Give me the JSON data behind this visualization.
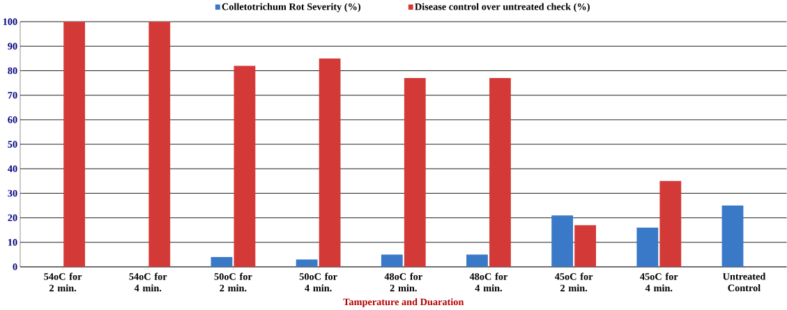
{
  "chart_data": {
    "type": "bar",
    "xlabel": "Tamperature  and Duaration",
    "categories": [
      "54oC for 2 min.",
      "54oC for 4 min.",
      "50oC for 2 min.",
      "50oC for 4 min.",
      "48oC for 2 min.",
      "48oC for 4 min.",
      "45oC for 2 min.",
      "45oC for 4 min.",
      "Untreated Control"
    ],
    "series": [
      {
        "name": "Colletotrichum Rot Severity (%)",
        "color": "#3a78c8",
        "values": [
          0,
          0,
          4,
          3,
          5,
          5,
          21,
          16,
          25
        ]
      },
      {
        "name": "Disease control over untreated check (%)",
        "color": "#d33a37",
        "values": [
          100,
          100,
          82,
          85,
          77,
          77,
          17,
          35,
          0
        ]
      }
    ],
    "ylim": [
      0,
      100
    ],
    "yticks": [
      0,
      10,
      20,
      30,
      40,
      50,
      60,
      70,
      80,
      90,
      100
    ],
    "grid": "y",
    "legend": "top"
  }
}
